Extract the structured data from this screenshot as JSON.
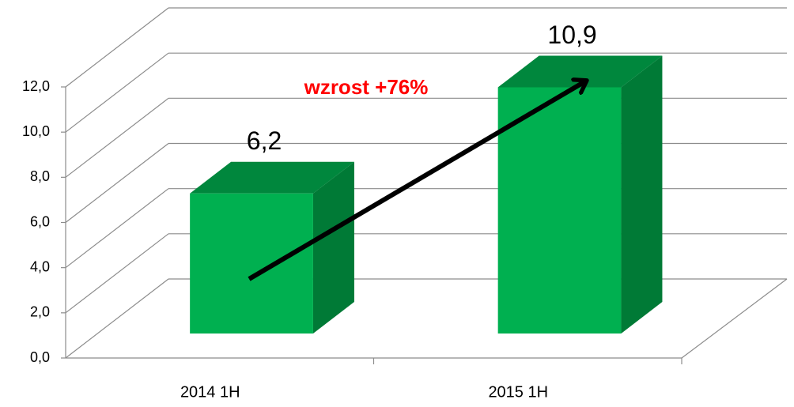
{
  "chart_data": {
    "type": "bar3d",
    "categories": [
      "2014 1H",
      "2015 1H"
    ],
    "values": [
      6.2,
      10.9
    ],
    "value_labels": [
      "6,2",
      "10,9"
    ],
    "color": "#00b050",
    "ylim": [
      0,
      12
    ],
    "yticks": [
      {
        "value": 0,
        "label": "0,0"
      },
      {
        "value": 2,
        "label": "2,0"
      },
      {
        "value": 4,
        "label": "4,0"
      },
      {
        "value": 6,
        "label": "6,0"
      },
      {
        "value": 8,
        "label": "8,0"
      },
      {
        "value": 10,
        "label": "10,0"
      },
      {
        "value": 12,
        "label": "12,0"
      }
    ],
    "grid": true,
    "annotation": "wzrost +76%"
  }
}
